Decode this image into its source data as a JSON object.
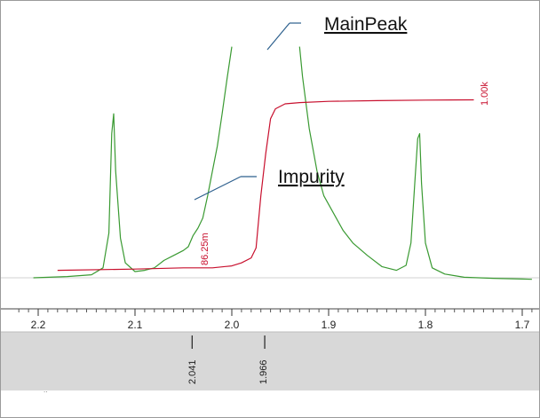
{
  "chart_data": {
    "type": "line",
    "title": "",
    "xlabel": "",
    "ylabel": "",
    "x_axis": {
      "reversed": true,
      "range": [
        2.2,
        1.7
      ],
      "ticks": [
        "2.2",
        "2.1",
        "2.0",
        "1.9",
        "1.8",
        "1.7"
      ]
    },
    "series": [
      {
        "color": "#3a9a32",
        "points": [
          [
            2.205,
            0.12
          ],
          [
            2.17,
            0.125
          ],
          [
            2.145,
            0.132
          ],
          [
            2.133,
            0.16
          ],
          [
            2.127,
            0.3
          ],
          [
            2.124,
            0.7
          ],
          [
            2.122,
            0.78
          ],
          [
            2.12,
            0.55
          ],
          [
            2.115,
            0.28
          ],
          [
            2.11,
            0.18
          ],
          [
            2.1,
            0.145
          ],
          [
            2.09,
            0.15
          ],
          [
            2.08,
            0.16
          ],
          [
            2.07,
            0.19
          ],
          [
            2.06,
            0.21
          ],
          [
            2.05,
            0.23
          ],
          [
            2.045,
            0.245
          ],
          [
            2.04,
            0.29
          ],
          [
            2.035,
            0.32
          ],
          [
            2.03,
            0.36
          ],
          [
            2.025,
            0.45
          ],
          [
            2.02,
            0.55
          ],
          [
            2.015,
            0.65
          ],
          [
            2.01,
            0.78
          ],
          [
            2.005,
            0.92
          ],
          [
            2.0,
            1.05
          ]
        ]
      },
      {
        "color": "#3a9a32",
        "points": [
          [
            1.93,
            1.05
          ],
          [
            1.927,
            0.93
          ],
          [
            1.92,
            0.72
          ],
          [
            1.912,
            0.55
          ],
          [
            1.905,
            0.45
          ],
          [
            1.895,
            0.38
          ],
          [
            1.885,
            0.31
          ],
          [
            1.875,
            0.26
          ],
          [
            1.86,
            0.21
          ],
          [
            1.845,
            0.165
          ],
          [
            1.83,
            0.15
          ],
          [
            1.82,
            0.17
          ],
          [
            1.815,
            0.26
          ],
          [
            1.811,
            0.5
          ],
          [
            1.808,
            0.68
          ],
          [
            1.806,
            0.7
          ],
          [
            1.804,
            0.5
          ],
          [
            1.8,
            0.26
          ],
          [
            1.793,
            0.16
          ],
          [
            1.78,
            0.135
          ],
          [
            1.76,
            0.122
          ],
          [
            1.73,
            0.118
          ],
          [
            1.7,
            0.115
          ],
          [
            1.69,
            0.114
          ]
        ]
      },
      {
        "name": "integral",
        "color": "#c8102e",
        "points": [
          [
            2.18,
            0.15
          ],
          [
            2.1,
            0.155
          ],
          [
            2.05,
            0.16
          ],
          [
            2.02,
            0.16
          ],
          [
            2.0,
            0.168
          ],
          [
            1.99,
            0.18
          ],
          [
            1.98,
            0.2
          ],
          [
            1.975,
            0.24
          ],
          [
            1.97,
            0.45
          ],
          [
            1.965,
            0.62
          ],
          [
            1.96,
            0.76
          ],
          [
            1.955,
            0.8
          ],
          [
            1.945,
            0.82
          ],
          [
            1.93,
            0.825
          ],
          [
            1.9,
            0.83
          ],
          [
            1.85,
            0.833
          ],
          [
            1.8,
            0.835
          ],
          [
            1.75,
            0.836
          ]
        ]
      }
    ],
    "integral_labels": [
      "86.25m",
      "1.00k"
    ],
    "peak_labels": [
      "2.041",
      "1.966"
    ],
    "annotations": [
      "MainPeak",
      "Impurity"
    ]
  }
}
